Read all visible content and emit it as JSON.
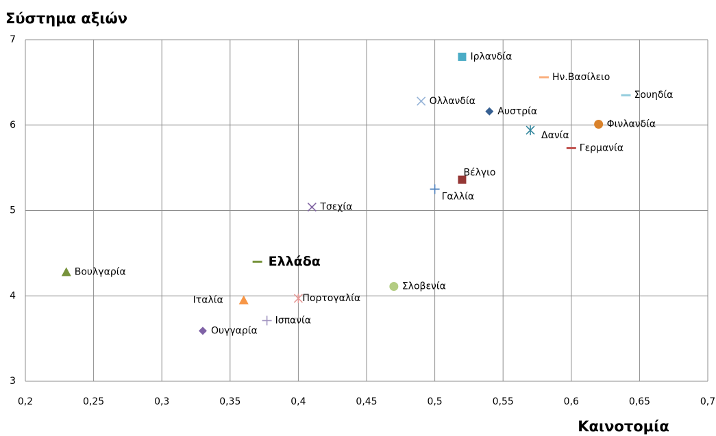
{
  "chart_data": {
    "type": "scatter",
    "title": "Σύστημα αξιών",
    "xlabel": "Καινοτομία",
    "xlim": [
      0.2,
      0.7
    ],
    "ylim": [
      3,
      7
    ],
    "grid": true,
    "xticks": [
      {
        "value": 0.2,
        "label": "0,2"
      },
      {
        "value": 0.25,
        "label": "0,25"
      },
      {
        "value": 0.3,
        "label": "0,3"
      },
      {
        "value": 0.35,
        "label": "0,35"
      },
      {
        "value": 0.4,
        "label": "0,4"
      },
      {
        "value": 0.45,
        "label": "0,45"
      },
      {
        "value": 0.5,
        "label": "0,5"
      },
      {
        "value": 0.55,
        "label": "0,55"
      },
      {
        "value": 0.6,
        "label": "0,6"
      },
      {
        "value": 0.65,
        "label": "0,65"
      },
      {
        "value": 0.7,
        "label": "0,7"
      }
    ],
    "yticks": [
      3,
      4,
      5,
      6,
      7
    ],
    "series": [
      {
        "name": "Ιρλανδία",
        "x": 0.52,
        "y": 6.8,
        "color": "#4bacc6",
        "marker": "square"
      },
      {
        "name": "Ην.Βασίλειο",
        "x": 0.58,
        "y": 6.56,
        "color": "#fab080",
        "marker": "dash"
      },
      {
        "name": "Σουηδία",
        "x": 0.64,
        "y": 6.35,
        "color": "#93cddd",
        "marker": "dash"
      },
      {
        "name": "Ολλανδία",
        "x": 0.49,
        "y": 6.28,
        "color": "#95b3d7",
        "marker": "x"
      },
      {
        "name": "Αυστρία",
        "x": 0.54,
        "y": 6.16,
        "color": "#376092",
        "marker": "diamond"
      },
      {
        "name": "Φινλανδία",
        "x": 0.62,
        "y": 6.01,
        "color": "#d9822b",
        "marker": "circle"
      },
      {
        "name": "Δανία",
        "x": 0.57,
        "y": 5.94,
        "color": "#31859c",
        "marker": "asterisk"
      },
      {
        "name": "Γερμανία",
        "x": 0.6,
        "y": 5.73,
        "color": "#c0504d",
        "marker": "dash"
      },
      {
        "name": "Βέλγιο",
        "x": 0.52,
        "y": 5.36,
        "color": "#953735",
        "marker": "square"
      },
      {
        "name": "Γαλλία",
        "x": 0.5,
        "y": 5.25,
        "color": "#4f81bd",
        "marker": "plus"
      },
      {
        "name": "Τσεχία",
        "x": 0.41,
        "y": 5.04,
        "color": "#8064a2",
        "marker": "x"
      },
      {
        "name": "Ελλάδα",
        "x": 0.37,
        "y": 4.4,
        "color": "#77933c",
        "marker": "dash",
        "label_color": "#7030a0"
      },
      {
        "name": "Βουλγαρία",
        "x": 0.23,
        "y": 4.28,
        "color": "#77933c",
        "marker": "triangle"
      },
      {
        "name": "Σλοβενία",
        "x": 0.47,
        "y": 4.11,
        "color": "#b3cc82",
        "marker": "circle"
      },
      {
        "name": "Ιταλία",
        "x": 0.36,
        "y": 3.95,
        "color": "#f79646",
        "marker": "triangle"
      },
      {
        "name": "Πορτογαλία",
        "x": 0.4,
        "y": 3.97,
        "color": "#e69a98",
        "marker": "asterisk"
      },
      {
        "name": "Ισπανία",
        "x": 0.377,
        "y": 3.71,
        "color": "#a193c0",
        "marker": "plus"
      },
      {
        "name": "Ουγγαρία",
        "x": 0.33,
        "y": 3.59,
        "color": "#7f62a6",
        "marker": "diamond"
      }
    ]
  }
}
